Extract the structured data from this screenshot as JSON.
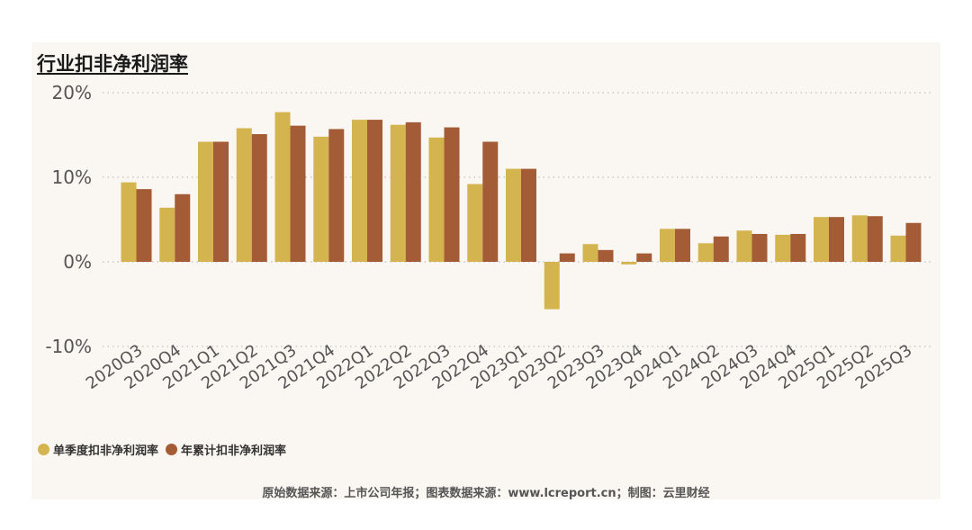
{
  "title": "行业扣非净利润率",
  "source": "原始数据来源：上市公司年报；图表数据来源：www.lcreport.cn；制图：云里财经",
  "colors": {
    "single": "#d4b44e",
    "cumulative": "#a35c35",
    "grid": "#bfbfbf",
    "axis_text": "#555555"
  },
  "chart_data": {
    "type": "bar",
    "title": "行业扣非净利润率",
    "categories": [
      "2020Q3",
      "2020Q4",
      "2021Q1",
      "2021Q2",
      "2021Q3",
      "2021Q4",
      "2022Q1",
      "2022Q2",
      "2022Q3",
      "2022Q4",
      "2023Q1",
      "2023Q2",
      "2023Q3",
      "2023Q4",
      "2024Q1",
      "2024Q2",
      "2024Q3",
      "2024Q4",
      "2025Q1",
      "2025Q2",
      "2025Q3"
    ],
    "series": [
      {
        "name": "单季度扣非净利润率",
        "values": [
          9.4,
          6.4,
          14.2,
          15.8,
          17.7,
          14.8,
          16.8,
          16.2,
          14.7,
          9.2,
          11.0,
          -5.6,
          2.1,
          -0.3,
          3.9,
          2.2,
          3.7,
          3.2,
          5.3,
          5.5,
          3.1
        ]
      },
      {
        "name": "年累计扣非净利润率",
        "values": [
          8.6,
          8.0,
          14.2,
          15.1,
          16.1,
          15.7,
          16.8,
          16.5,
          15.9,
          14.2,
          11.0,
          1.0,
          1.4,
          1.0,
          3.9,
          3.0,
          3.3,
          3.3,
          5.3,
          5.4,
          4.6
        ]
      }
    ],
    "yticks": [
      "20%",
      "10%",
      "0%",
      "-10%"
    ],
    "ytick_values": [
      20,
      10,
      0,
      -10
    ],
    "ylim": [
      -10,
      20
    ],
    "grid": true,
    "legend_position": "bottom-left"
  }
}
